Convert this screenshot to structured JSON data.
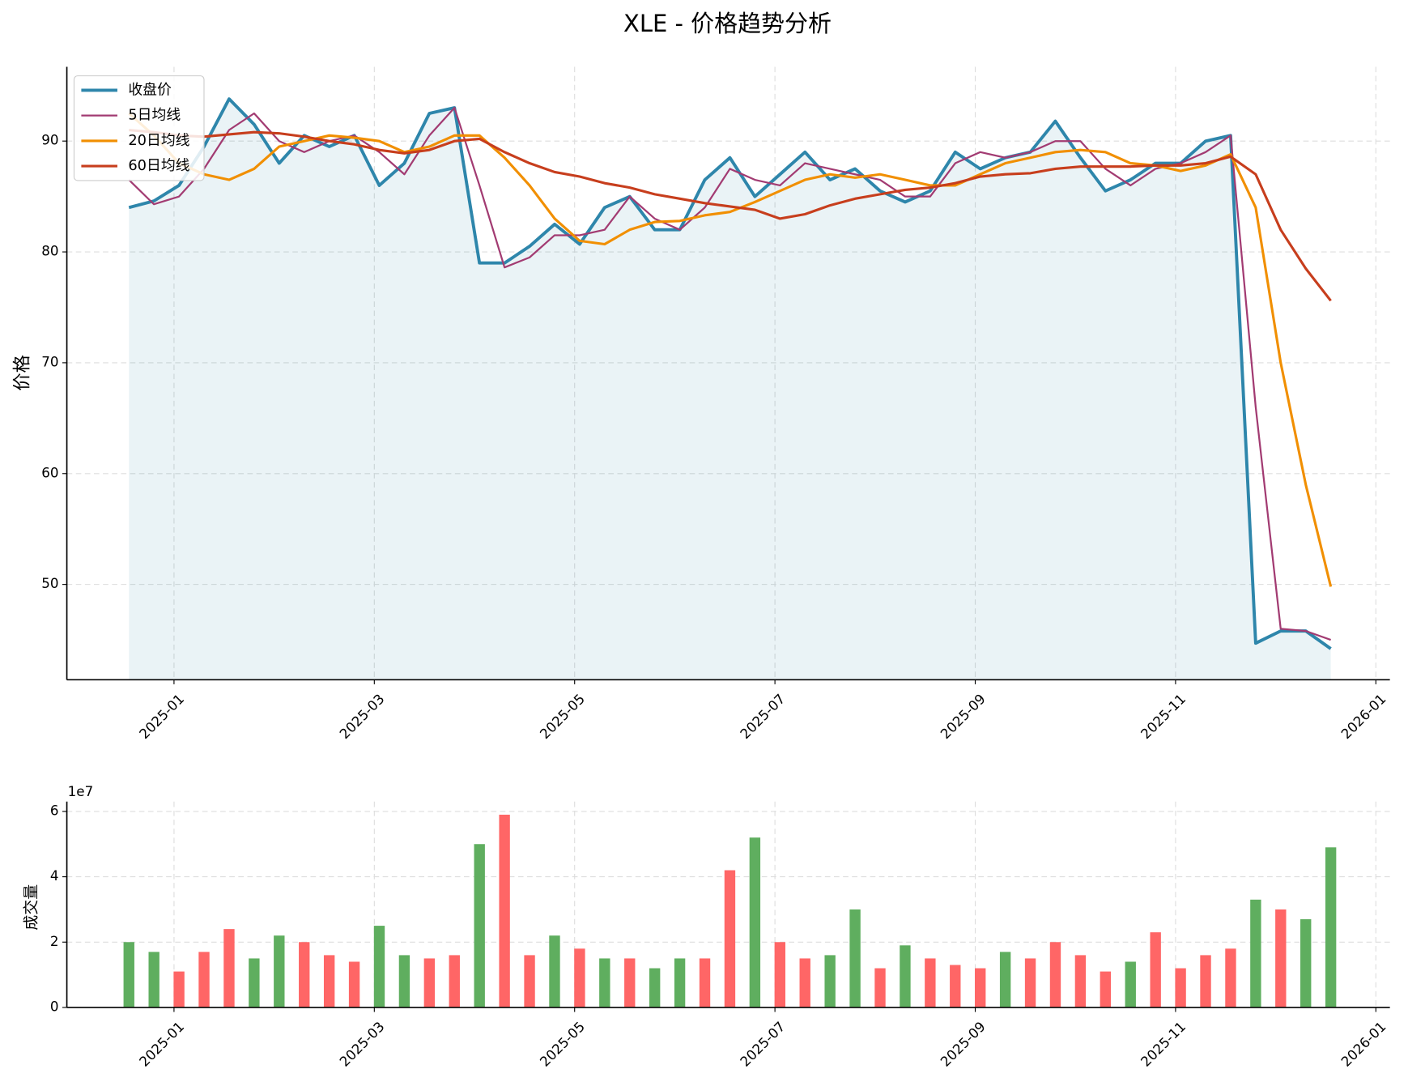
{
  "chart_data": [
    {
      "type": "line",
      "title": "XLE - 价格趋势分析",
      "y_label": "价格",
      "x": [
        -0.45,
        -0.2,
        0.05,
        0.3,
        0.55,
        0.8,
        1.05,
        1.3,
        1.55,
        1.8,
        2.05,
        2.3,
        2.55,
        2.8,
        3.05,
        3.3,
        3.55,
        3.8,
        4.05,
        4.3,
        4.55,
        4.8,
        5.05,
        5.3,
        5.55,
        5.8,
        6.05,
        6.3,
        6.55,
        6.8,
        7.05,
        7.3,
        7.55,
        7.8,
        8.05,
        8.3,
        8.55,
        8.8,
        9.05,
        9.3,
        9.55,
        9.8,
        10.05,
        10.3,
        10.55,
        10.8,
        11.05,
        11.3,
        11.55
      ],
      "series": [
        {
          "name": "收盘价",
          "color": "#2e86ab",
          "width": 3.5,
          "fill": true,
          "values": [
            84,
            84.6,
            86,
            89.5,
            93.8,
            91.5,
            88,
            90.5,
            89.5,
            90.5,
            86,
            88,
            92.5,
            93,
            79,
            79,
            80.5,
            82.5,
            80.7,
            84,
            85,
            82,
            82,
            86.5,
            88.5,
            85,
            87,
            89,
            86.5,
            87.5,
            85.5,
            84.5,
            85.5,
            89,
            87.5,
            88.5,
            89,
            91.8,
            88.5,
            85.5,
            86.5,
            88,
            88,
            90,
            90.5,
            44.7,
            45.8,
            45.8,
            44.2
          ]
        },
        {
          "name": "5日均线",
          "color": "#a23b72",
          "width": 2,
          "values": [
            86.5,
            84.3,
            85,
            87.5,
            91,
            92.5,
            90,
            89,
            90,
            90.5,
            89,
            87,
            90.5,
            93,
            86,
            78.6,
            79.5,
            81.5,
            81.5,
            82,
            85,
            83,
            82,
            84,
            87.5,
            86.5,
            86,
            88,
            87.5,
            87,
            86.5,
            85,
            85,
            88,
            89,
            88.5,
            89,
            90,
            90,
            87.5,
            86,
            87.5,
            88,
            89,
            90.5,
            66,
            46,
            45.8,
            45
          ]
        },
        {
          "name": "20日均线",
          "color": "#f18f01",
          "width": 2.8,
          "values": [
            92.5,
            90.5,
            88,
            87,
            86.5,
            87.5,
            89.5,
            90,
            90.5,
            90.3,
            90,
            89,
            89.5,
            90.5,
            90.5,
            88.5,
            86,
            83,
            81,
            80.7,
            82,
            82.7,
            82.8,
            83.3,
            83.6,
            84.5,
            85.5,
            86.5,
            87,
            86.7,
            87,
            86.5,
            86,
            86,
            87,
            88,
            88.5,
            89,
            89.2,
            89,
            88,
            87.8,
            87.3,
            87.8,
            88.8,
            84,
            70,
            59,
            49.8
          ]
        },
        {
          "name": "60日均线",
          "color": "#c73e1d",
          "width": 2.8,
          "values": [
            91,
            90.8,
            90.5,
            90.4,
            90.6,
            90.8,
            90.7,
            90.4,
            90,
            89.7,
            89.2,
            88.9,
            89.2,
            90,
            90.2,
            89,
            88,
            87.2,
            86.8,
            86.2,
            85.8,
            85.2,
            84.8,
            84.4,
            84.1,
            83.8,
            83,
            83.4,
            84.2,
            84.8,
            85.2,
            85.6,
            85.8,
            86.2,
            86.8,
            87,
            87.1,
            87.5,
            87.7,
            87.7,
            87.7,
            87.8,
            87.8,
            88,
            88.6,
            87,
            82,
            78.5,
            75.6
          ]
        }
      ],
      "xlim": [
        -1.07,
        12.14
      ],
      "ylim": [
        41.4,
        96.7
      ],
      "xticks": [
        {
          "value": 0,
          "label": "2025-01"
        },
        {
          "value": 2,
          "label": "2025-03"
        },
        {
          "value": 4,
          "label": "2025-05"
        },
        {
          "value": 6,
          "label": "2025-07"
        },
        {
          "value": 8,
          "label": "2025-09"
        },
        {
          "value": 10,
          "label": "2025-11"
        },
        {
          "value": 12,
          "label": "2026-01"
        }
      ],
      "yticks": [
        50,
        60,
        70,
        80,
        90
      ],
      "grid": true,
      "legend": "upper-left"
    },
    {
      "type": "bar",
      "y_label": "成交量",
      "offset_label": "1e7",
      "x": [
        -0.45,
        -0.2,
        0.05,
        0.3,
        0.55,
        0.8,
        1.05,
        1.3,
        1.55,
        1.8,
        2.05,
        2.3,
        2.55,
        2.8,
        3.05,
        3.3,
        3.55,
        3.8,
        4.05,
        4.3,
        4.55,
        4.8,
        5.05,
        5.3,
        5.55,
        5.8,
        6.05,
        6.3,
        6.55,
        6.8,
        7.05,
        7.3,
        7.55,
        7.8,
        8.05,
        8.3,
        8.55,
        8.8,
        9.05,
        9.3,
        9.55,
        9.8,
        10.05,
        10.3,
        10.55,
        10.8,
        11.05,
        11.3,
        11.55
      ],
      "values": [
        20000000,
        17000000,
        11000000,
        17000000,
        24000000,
        15000000,
        22000000,
        20000000,
        16000000,
        14000000,
        25000000,
        16000000,
        15000000,
        16000000,
        50000000,
        59000000,
        16000000,
        22000000,
        18000000,
        15000000,
        15000000,
        12000000,
        15000000,
        15000000,
        42000000,
        52000000,
        20000000,
        15000000,
        16000000,
        30000000,
        12000000,
        19000000,
        15000000,
        13000000,
        12000000,
        17000000,
        15000000,
        20000000,
        16000000,
        11000000,
        14000000,
        23000000,
        12000000,
        16000000,
        18000000,
        33000000,
        30000000,
        27000000,
        49000000
      ],
      "colors": [
        "#5fae5f",
        "#5fae5f",
        "#ff6666",
        "#ff6666",
        "#ff6666",
        "#5fae5f",
        "#5fae5f",
        "#ff6666",
        "#ff6666",
        "#ff6666",
        "#5fae5f",
        "#5fae5f",
        "#ff6666",
        "#ff6666",
        "#5fae5f",
        "#ff6666",
        "#ff6666",
        "#5fae5f",
        "#ff6666",
        "#5fae5f",
        "#ff6666",
        "#5fae5f",
        "#5fae5f",
        "#ff6666",
        "#ff6666",
        "#5fae5f",
        "#ff6666",
        "#ff6666",
        "#5fae5f",
        "#5fae5f",
        "#ff6666",
        "#5fae5f",
        "#ff6666",
        "#ff6666",
        "#ff6666",
        "#5fae5f",
        "#ff6666",
        "#ff6666",
        "#ff6666",
        "#ff6666",
        "#5fae5f",
        "#ff6666",
        "#ff6666",
        "#ff6666",
        "#ff6666",
        "#5fae5f",
        "#ff6666",
        "#5fae5f",
        "#5fae5f"
      ],
      "xlim": [
        -1.07,
        12.14
      ],
      "ylim": [
        0,
        63000000
      ],
      "xticks": [
        {
          "value": 0,
          "label": "2025-01"
        },
        {
          "value": 2,
          "label": "2025-03"
        },
        {
          "value": 4,
          "label": "2025-05"
        },
        {
          "value": 6,
          "label": "2025-07"
        },
        {
          "value": 8,
          "label": "2025-09"
        },
        {
          "value": 10,
          "label": "2025-11"
        },
        {
          "value": 12,
          "label": "2026-01"
        }
      ],
      "yticks": [
        0,
        {
          "value": 20000000,
          "label": "2"
        },
        {
          "value": 40000000,
          "label": "4"
        },
        {
          "value": 60000000,
          "label": "6"
        }
      ],
      "grid": true
    }
  ]
}
